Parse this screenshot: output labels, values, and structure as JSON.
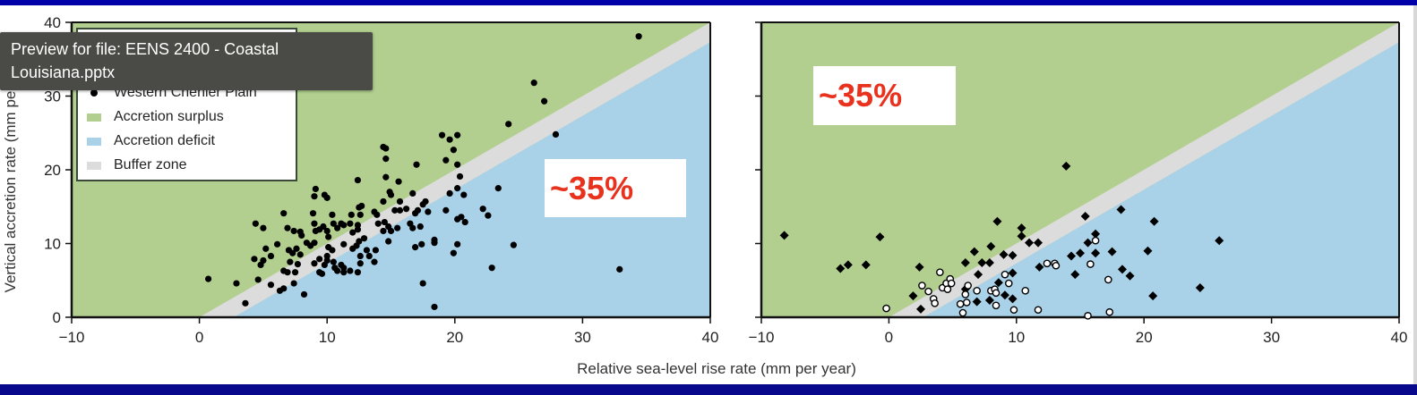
{
  "tooltip": {
    "text": "Preview for file: EENS 2400 - Coastal Louisiana.pptx"
  },
  "colors": {
    "surplus": "#b2cf8f",
    "deficit": "#a9d1e8",
    "buffer": "#dcdcdc",
    "annotation": "#e8321e",
    "frame": "#000a8c"
  },
  "shared": {
    "xlabel": "Relative sea-level rise rate (mm per year)",
    "ylabel": "Vertical accretion rate (mm per year)"
  },
  "legend": {
    "items": [
      {
        "label": "Western Chenier Plain",
        "kind": "marker-dot"
      },
      {
        "label": "Accretion surplus",
        "kind": "surplus"
      },
      {
        "label": "Accretion deficit",
        "kind": "deficit"
      },
      {
        "label": "Buffer zone",
        "kind": "buffer"
      }
    ]
  },
  "annotations": {
    "left": "~35%",
    "right": "~35%"
  },
  "chart_data": [
    {
      "type": "scatter",
      "xlim": [
        -10,
        40
      ],
      "ylim": [
        0,
        40
      ],
      "xticks": [
        "-10",
        "0",
        "10",
        "20",
        "30",
        "40"
      ],
      "yticks": [
        "0",
        "10",
        "20",
        "30",
        "40"
      ],
      "regions": {
        "surplus": "above y = x",
        "buffer": "between y = x and y = x - 2.7",
        "deficit": "below y = x - 2.7"
      },
      "grid": false,
      "series": [
        {
          "marker": "filled-circle",
          "points": [
            [
              0.7,
              5.2
            ],
            [
              2.9,
              4.6
            ],
            [
              3.6,
              1.9
            ],
            [
              4.6,
              5.1
            ],
            [
              4.4,
              12.7
            ],
            [
              5.0,
              12.1
            ],
            [
              5.2,
              9.3
            ],
            [
              4.3,
              7.9
            ],
            [
              4.8,
              7.1
            ],
            [
              5.0,
              7.7
            ],
            [
              5.6,
              8.3
            ],
            [
              6.1,
              9.9
            ],
            [
              5.6,
              4.4
            ],
            [
              6.3,
              3.6
            ],
            [
              6.6,
              3.9
            ],
            [
              6.6,
              14.1
            ],
            [
              6.9,
              12.1
            ],
            [
              7.4,
              11.7
            ],
            [
              7.9,
              11.6
            ],
            [
              8.0,
              11.1
            ],
            [
              7.0,
              9.1
            ],
            [
              7.3,
              8.7
            ],
            [
              7.6,
              9.3
            ],
            [
              7.9,
              8.5
            ],
            [
              7.1,
              7.5
            ],
            [
              7.7,
              7.2
            ],
            [
              6.6,
              6.3
            ],
            [
              6.9,
              6.1
            ],
            [
              7.5,
              6.1
            ],
            [
              7.4,
              4.6
            ],
            [
              8.2,
              3.1
            ],
            [
              8.4,
              10.1
            ],
            [
              8.7,
              9.7
            ],
            [
              9.0,
              10.1
            ],
            [
              8.9,
              14.1
            ],
            [
              9.0,
              12.7
            ],
            [
              9.1,
              11.7
            ],
            [
              9.4,
              11.9
            ],
            [
              9.7,
              12.3
            ],
            [
              10.0,
              11.7
            ],
            [
              10.1,
              10.9
            ],
            [
              10.4,
              13.9
            ],
            [
              10.5,
              12.7
            ],
            [
              10.8,
              12.1
            ],
            [
              11.1,
              12.7
            ],
            [
              11.3,
              12.5
            ],
            [
              11.9,
              13.9
            ],
            [
              11.8,
              12.7
            ],
            [
              12.4,
              12.5
            ],
            [
              12.5,
              14.9
            ],
            [
              12.7,
              15.1
            ],
            [
              12.6,
              13.9
            ],
            [
              9.1,
              17.4
            ],
            [
              9.0,
              16.4
            ],
            [
              9.8,
              16.6
            ],
            [
              10.0,
              16.2
            ],
            [
              12.4,
              18.6
            ],
            [
              9.4,
              7.9
            ],
            [
              9.0,
              7.3
            ],
            [
              10.0,
              8.3
            ],
            [
              10.1,
              9.5
            ],
            [
              10.4,
              9.1
            ],
            [
              10.0,
              7.7
            ],
            [
              9.8,
              7.1
            ],
            [
              9.4,
              6.1
            ],
            [
              9.6,
              5.9
            ],
            [
              10.5,
              7.5
            ],
            [
              10.6,
              6.7
            ],
            [
              11.1,
              7.1
            ],
            [
              10.8,
              6.3
            ],
            [
              11.3,
              6.7
            ],
            [
              11.3,
              6.1
            ],
            [
              11.8,
              6.3
            ],
            [
              12.4,
              6.1
            ],
            [
              11.3,
              9.9
            ],
            [
              12.0,
              9.3
            ],
            [
              12.3,
              9.7
            ],
            [
              12.5,
              10.3
            ],
            [
              12.9,
              10.7
            ],
            [
              13.1,
              9.1
            ],
            [
              13.3,
              8.3
            ],
            [
              12.6,
              7.3
            ],
            [
              12.6,
              8.3
            ],
            [
              13.7,
              7.5
            ],
            [
              13.8,
              9.1
            ],
            [
              12.0,
              11.5
            ],
            [
              12.4,
              11.9
            ],
            [
              13.7,
              14.3
            ],
            [
              13.9,
              13.9
            ],
            [
              14.0,
              12.7
            ],
            [
              14.4,
              15.7
            ],
            [
              14.5,
              12.9
            ],
            [
              14.4,
              11.7
            ],
            [
              14.8,
              12.3
            ],
            [
              15.0,
              11.7
            ],
            [
              14.9,
              17.0
            ],
            [
              15.0,
              16.6
            ],
            [
              14.6,
              19.0
            ],
            [
              15.6,
              18.4
            ],
            [
              15.7,
              15.7
            ],
            [
              15.5,
              12.1
            ],
            [
              15.3,
              14.5
            ],
            [
              15.7,
              14.5
            ],
            [
              16.2,
              14.7
            ],
            [
              16.7,
              16.8
            ],
            [
              14.6,
              21.5
            ],
            [
              14.4,
              23.1
            ],
            [
              14.6,
              22.9
            ],
            [
              14.8,
              10.3
            ],
            [
              16.5,
              12.7
            ],
            [
              16.7,
              12.1
            ],
            [
              17.3,
              12.3
            ],
            [
              16.9,
              14.1
            ],
            [
              17.1,
              14.5
            ],
            [
              17.5,
              15.3
            ],
            [
              17.7,
              15.7
            ],
            [
              17.9,
              14.3
            ],
            [
              17.0,
              20.7
            ],
            [
              16.9,
              9.5
            ],
            [
              17.4,
              9.9
            ],
            [
              18.4,
              10.5
            ],
            [
              18.4,
              10.1
            ],
            [
              17.5,
              4.6
            ],
            [
              18.4,
              1.4
            ],
            [
              19.0,
              24.7
            ],
            [
              19.6,
              24.1
            ],
            [
              20.2,
              24.7
            ],
            [
              19.9,
              22.7
            ],
            [
              19.3,
              21.3
            ],
            [
              20.2,
              20.7
            ],
            [
              20.4,
              19.1
            ],
            [
              20.2,
              17.5
            ],
            [
              19.6,
              16.8
            ],
            [
              19.3,
              14.5
            ],
            [
              20.2,
              13.3
            ],
            [
              20.8,
              12.9
            ],
            [
              20.2,
              9.9
            ],
            [
              19.9,
              8.7
            ],
            [
              26.2,
              31.8
            ],
            [
              27.0,
              29.3
            ],
            [
              27.9,
              24.8
            ],
            [
              24.2,
              26.2
            ],
            [
              23.4,
              17.5
            ],
            [
              22.2,
              14.7
            ],
            [
              22.6,
              13.8
            ],
            [
              22.9,
              6.7
            ],
            [
              24.6,
              9.8
            ],
            [
              34.4,
              38.1
            ],
            [
              32.9,
              6.5
            ],
            [
              20.5,
              13.6
            ],
            [
              20.7,
              16.6
            ]
          ]
        }
      ]
    },
    {
      "type": "scatter",
      "xlim": [
        -10,
        40
      ],
      "ylim": [
        0,
        40
      ],
      "xticks": [
        "-10",
        "0",
        "10",
        "20",
        "30",
        "40"
      ],
      "yticks": [],
      "regions": {
        "surplus": "above y = x",
        "buffer": "between y = x and y = x - 2.7",
        "deficit": "below y = x - 2.7"
      },
      "grid": false,
      "series": [
        {
          "marker": "filled-diamond",
          "points": [
            [
              -8.2,
              11.1
            ],
            [
              -3.8,
              6.6
            ],
            [
              -3.2,
              7.1
            ],
            [
              -1.8,
              7.1
            ],
            [
              -0.7,
              10.9
            ],
            [
              2.4,
              6.8
            ],
            [
              1.9,
              2.9
            ],
            [
              2.5,
              1.1
            ],
            [
              6.0,
              7.4
            ],
            [
              6.7,
              8.9
            ],
            [
              7.3,
              7.4
            ],
            [
              7.9,
              7.4
            ],
            [
              8.0,
              9.6
            ],
            [
              8.5,
              13.0
            ],
            [
              9.0,
              8.5
            ],
            [
              9.7,
              8.4
            ],
            [
              10.4,
              12.1
            ],
            [
              10.4,
              11.0
            ],
            [
              11.0,
              10.1
            ],
            [
              11.7,
              10.1
            ],
            [
              7.0,
              5.8
            ],
            [
              8.6,
              4.7
            ],
            [
              9.7,
              6.0
            ],
            [
              9.7,
              2.5
            ],
            [
              9.1,
              3.0
            ],
            [
              7.9,
              2.3
            ],
            [
              6.9,
              2.1
            ],
            [
              6.0,
              3.8
            ],
            [
              11.8,
              6.8
            ],
            [
              13.9,
              20.5
            ],
            [
              14.3,
              8.3
            ],
            [
              14.6,
              5.8
            ],
            [
              15.0,
              8.7
            ],
            [
              15.4,
              13.7
            ],
            [
              15.6,
              10.1
            ],
            [
              16.2,
              11.3
            ],
            [
              16.2,
              8.7
            ],
            [
              17.5,
              8.9
            ],
            [
              18.2,
              14.6
            ],
            [
              18.3,
              6.5
            ],
            [
              18.9,
              5.6
            ],
            [
              20.3,
              9.0
            ],
            [
              20.8,
              13.0
            ],
            [
              20.7,
              2.9
            ],
            [
              24.4,
              4.0
            ],
            [
              25.9,
              10.4
            ]
          ]
        },
        {
          "marker": "open-circle",
          "points": [
            [
              -0.2,
              1.2
            ],
            [
              4.0,
              6.1
            ],
            [
              2.6,
              4.3
            ],
            [
              3.1,
              3.5
            ],
            [
              3.5,
              2.5
            ],
            [
              3.6,
              1.9
            ],
            [
              4.2,
              4.0
            ],
            [
              4.5,
              4.6
            ],
            [
              4.8,
              5.2
            ],
            [
              4.9,
              4.6
            ],
            [
              4.6,
              3.8
            ],
            [
              5.6,
              1.8
            ],
            [
              5.8,
              0.6
            ],
            [
              6.0,
              3.1
            ],
            [
              6.1,
              2.0
            ],
            [
              6.2,
              4.3
            ],
            [
              6.9,
              3.6
            ],
            [
              8.0,
              3.6
            ],
            [
              8.3,
              3.8
            ],
            [
              8.4,
              3.3
            ],
            [
              8.4,
              1.6
            ],
            [
              9.1,
              5.8
            ],
            [
              9.4,
              4.6
            ],
            [
              9.8,
              1.0
            ],
            [
              10.7,
              3.6
            ],
            [
              11.7,
              1.0
            ],
            [
              12.4,
              7.3
            ],
            [
              13.0,
              7.3
            ],
            [
              13.1,
              7.0
            ],
            [
              15.6,
              0.2
            ],
            [
              15.8,
              7.2
            ],
            [
              16.2,
              10.4
            ],
            [
              17.2,
              5.1
            ],
            [
              17.3,
              0.7
            ]
          ]
        }
      ]
    }
  ]
}
